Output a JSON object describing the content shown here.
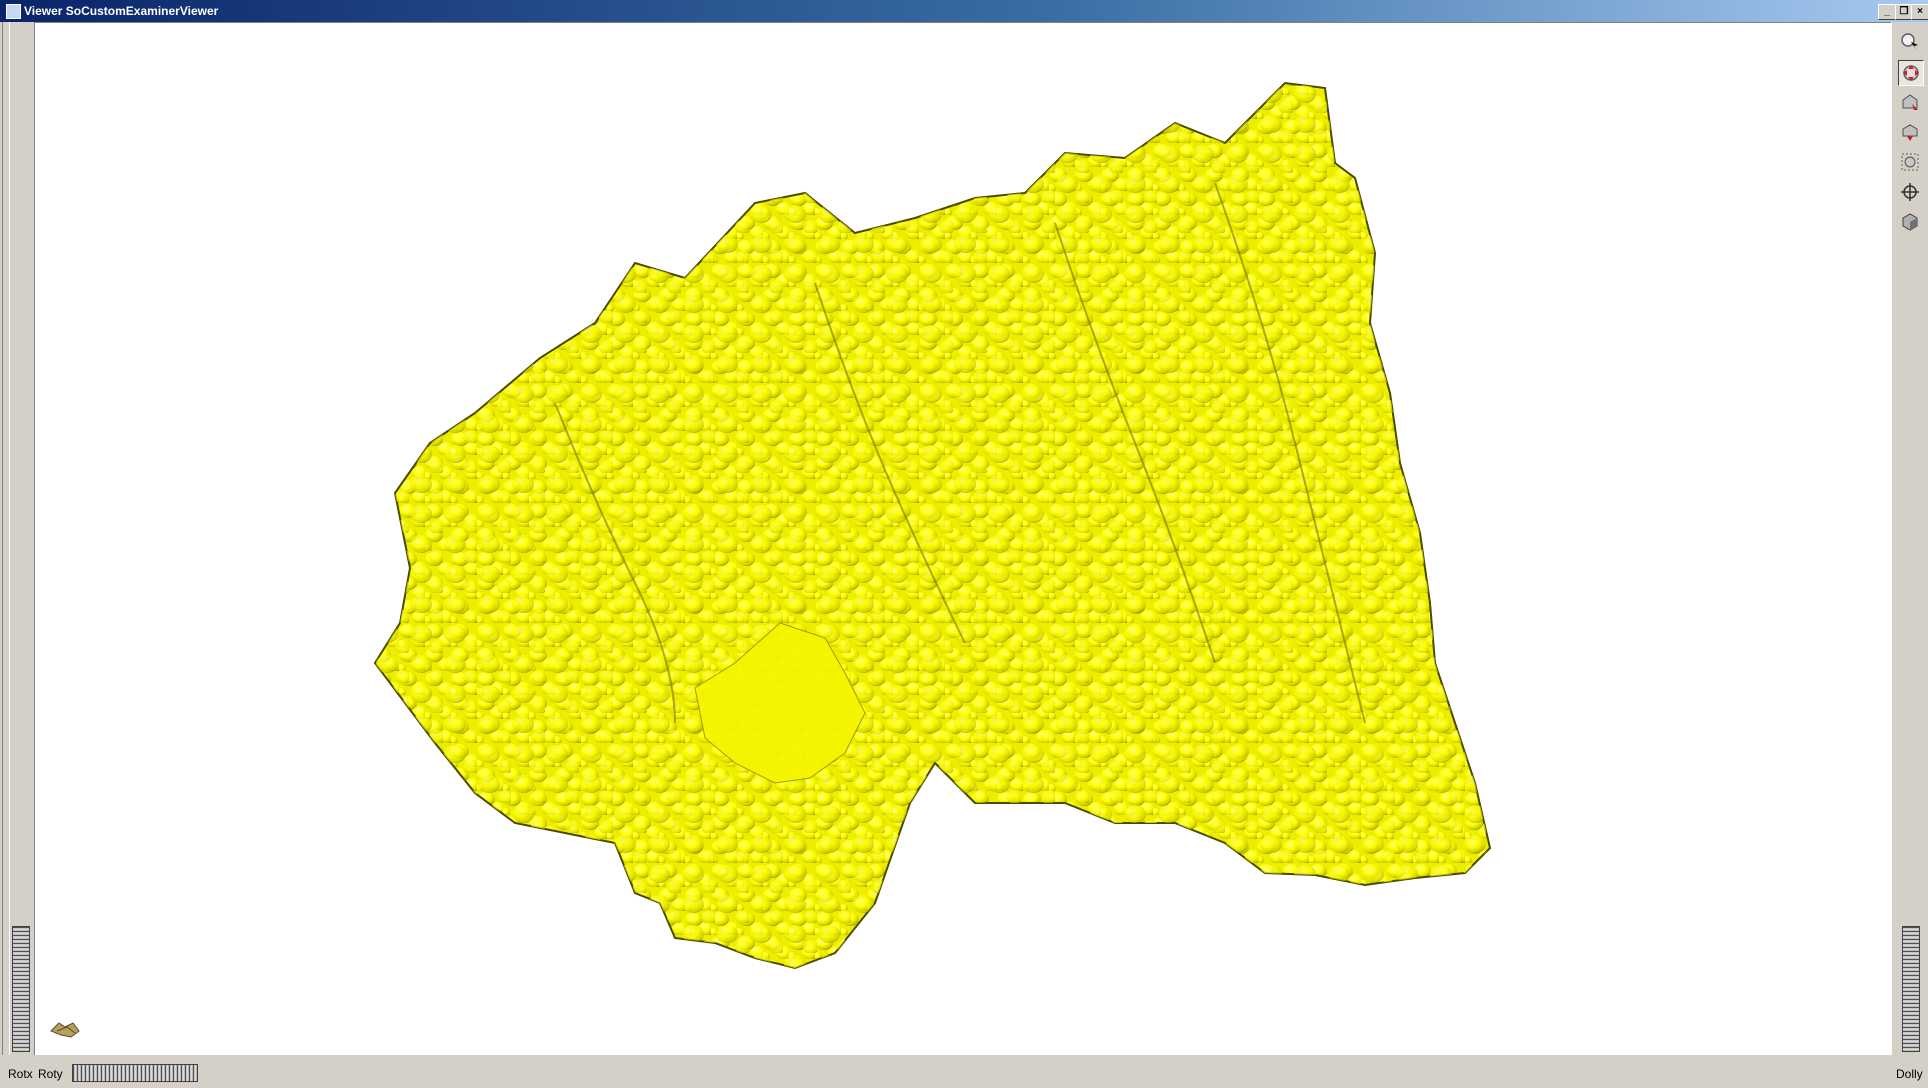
{
  "window": {
    "title": "Viewer SoCustomExaminerViewer",
    "controls": [
      "minimize-icon",
      "restore-icon",
      "close-icon"
    ]
  },
  "tools": [
    {
      "name": "pick-mode-icon",
      "active": false
    },
    {
      "name": "view-mode-icon",
      "active": true
    },
    {
      "name": "home-icon",
      "active": false
    },
    {
      "name": "set-home-icon",
      "active": false
    },
    {
      "name": "view-all-icon",
      "active": false
    },
    {
      "name": "seek-icon",
      "active": false
    },
    {
      "name": "projection-icon",
      "active": false
    }
  ],
  "thumbwheels": {
    "rotx_label": "Rotx",
    "roty_label": "Roty",
    "dolly_label": "Dolly"
  },
  "scene": {
    "object_color": "#ffff00",
    "shadow_color": "#5c5c00",
    "background_color": "#ffffff"
  }
}
